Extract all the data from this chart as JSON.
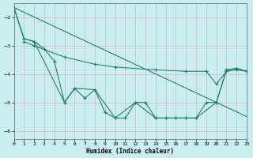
{
  "xlabel": "Humidex (Indice chaleur)",
  "bg_color": "#c8eef0",
  "grid_color": "#e0b0c0",
  "line_color": "#1a7a6a",
  "xlim": [
    0,
    23
  ],
  "ylim": [
    -6.3,
    -1.5
  ],
  "yticks": [
    -6,
    -5,
    -4,
    -3,
    -2
  ],
  "xticks": [
    0,
    1,
    2,
    3,
    4,
    5,
    6,
    7,
    8,
    9,
    10,
    11,
    12,
    13,
    14,
    15,
    16,
    17,
    18,
    19,
    20,
    21,
    22,
    23
  ],
  "line1_x": [
    0,
    1,
    2,
    3,
    4,
    5,
    6,
    7,
    8,
    9,
    10,
    11,
    12,
    13,
    14,
    15,
    16,
    17,
    18,
    19,
    20,
    21,
    22,
    23
  ],
  "line1_y": [
    -1.65,
    -2.75,
    -2.85,
    -3.1,
    -3.55,
    -5.0,
    -4.5,
    -4.85,
    -4.55,
    -5.35,
    -5.55,
    -5.55,
    -5.0,
    -5.0,
    -5.55,
    -5.55,
    -5.55,
    -5.55,
    -5.55,
    -5.0,
    -5.0,
    -3.85,
    -3.8,
    -3.9
  ],
  "line2_x": [
    0,
    1,
    2,
    5,
    6,
    8,
    10,
    12,
    14,
    15,
    16,
    17,
    18,
    20,
    21,
    22,
    23
  ],
  "line2_y": [
    -1.65,
    -2.75,
    -2.85,
    -5.0,
    -4.5,
    -4.55,
    -5.55,
    -5.0,
    -5.55,
    -5.55,
    -5.55,
    -5.55,
    -5.55,
    -5.0,
    -3.85,
    -3.8,
    -3.9
  ],
  "line3_x": [
    0,
    23
  ],
  "line3_y": [
    -1.65,
    -5.5
  ],
  "line4_x": [
    1,
    2,
    5,
    8,
    10,
    14,
    17,
    19,
    20,
    21,
    22,
    23
  ],
  "line4_y": [
    -2.85,
    -3.0,
    -3.4,
    -3.65,
    -3.75,
    -3.85,
    -3.9,
    -3.9,
    -4.35,
    -3.9,
    -3.85,
    -3.9
  ],
  "marker_size": 2.5,
  "line_width": 0.75
}
